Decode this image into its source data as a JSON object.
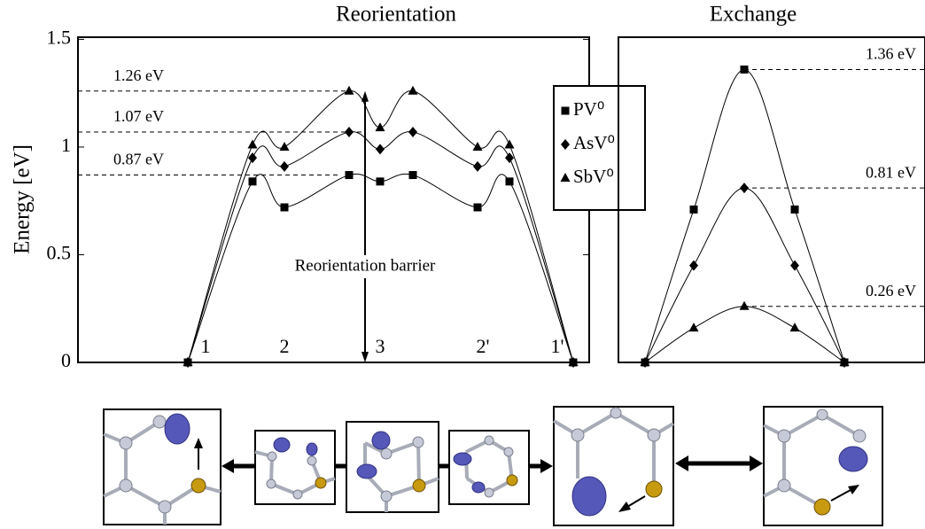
{
  "chart_data": [
    {
      "type": "line",
      "title": "Reorientation",
      "ylabel": "Energy [eV]",
      "categories": [
        "1",
        null,
        "2",
        null,
        "3",
        null,
        "2'",
        null,
        "1'"
      ],
      "series": [
        {
          "name": "PV⁰",
          "color": "#000000",
          "marker": "square",
          "values": [
            0,
            0.84,
            0.72,
            0.87,
            0.84,
            0.87,
            0.72,
            0.84,
            0
          ]
        },
        {
          "name": "AsV⁰",
          "color": "#000000",
          "marker": "diamond",
          "values": [
            0,
            0.95,
            0.91,
            1.07,
            0.99,
            1.07,
            0.91,
            0.95,
            0
          ]
        },
        {
          "name": "SbV⁰",
          "color": "#000000",
          "marker": "triangle",
          "values": [
            0,
            1.01,
            1.0,
            1.26,
            1.09,
            1.26,
            1.0,
            1.01,
            0
          ]
        }
      ],
      "ylim": [
        0,
        1.51
      ],
      "yticks": [
        0,
        0.5,
        1,
        1.5
      ],
      "annotations": [
        {
          "label": "1.26 eV",
          "value": 1.26
        },
        {
          "label": "1.07 eV",
          "value": 1.07
        },
        {
          "label": "0.87 eV",
          "value": 0.87
        }
      ],
      "barrier_label": "Reorientation barrier",
      "legend": "upper right"
    },
    {
      "type": "line",
      "title": "Exchange",
      "categories": [
        null,
        null,
        null,
        null,
        null
      ],
      "series": [
        {
          "color": "#000000",
          "marker": "square",
          "values": [
            0,
            0.71,
            1.36,
            0.71,
            0
          ]
        },
        {
          "color": "#000000",
          "marker": "diamond",
          "values": [
            0,
            0.45,
            0.81,
            0.45,
            0
          ]
        },
        {
          "color": "#000000",
          "marker": "triangle",
          "values": [
            0,
            0.16,
            0.26,
            0.16,
            0
          ]
        }
      ],
      "ylim": [
        0,
        1.51
      ],
      "annotations": [
        {
          "label": "1.36 eV",
          "value": 1.36
        },
        {
          "label": "0.81 eV",
          "value": 0.81
        },
        {
          "label": "0.26 eV",
          "value": 0.26
        }
      ]
    }
  ]
}
